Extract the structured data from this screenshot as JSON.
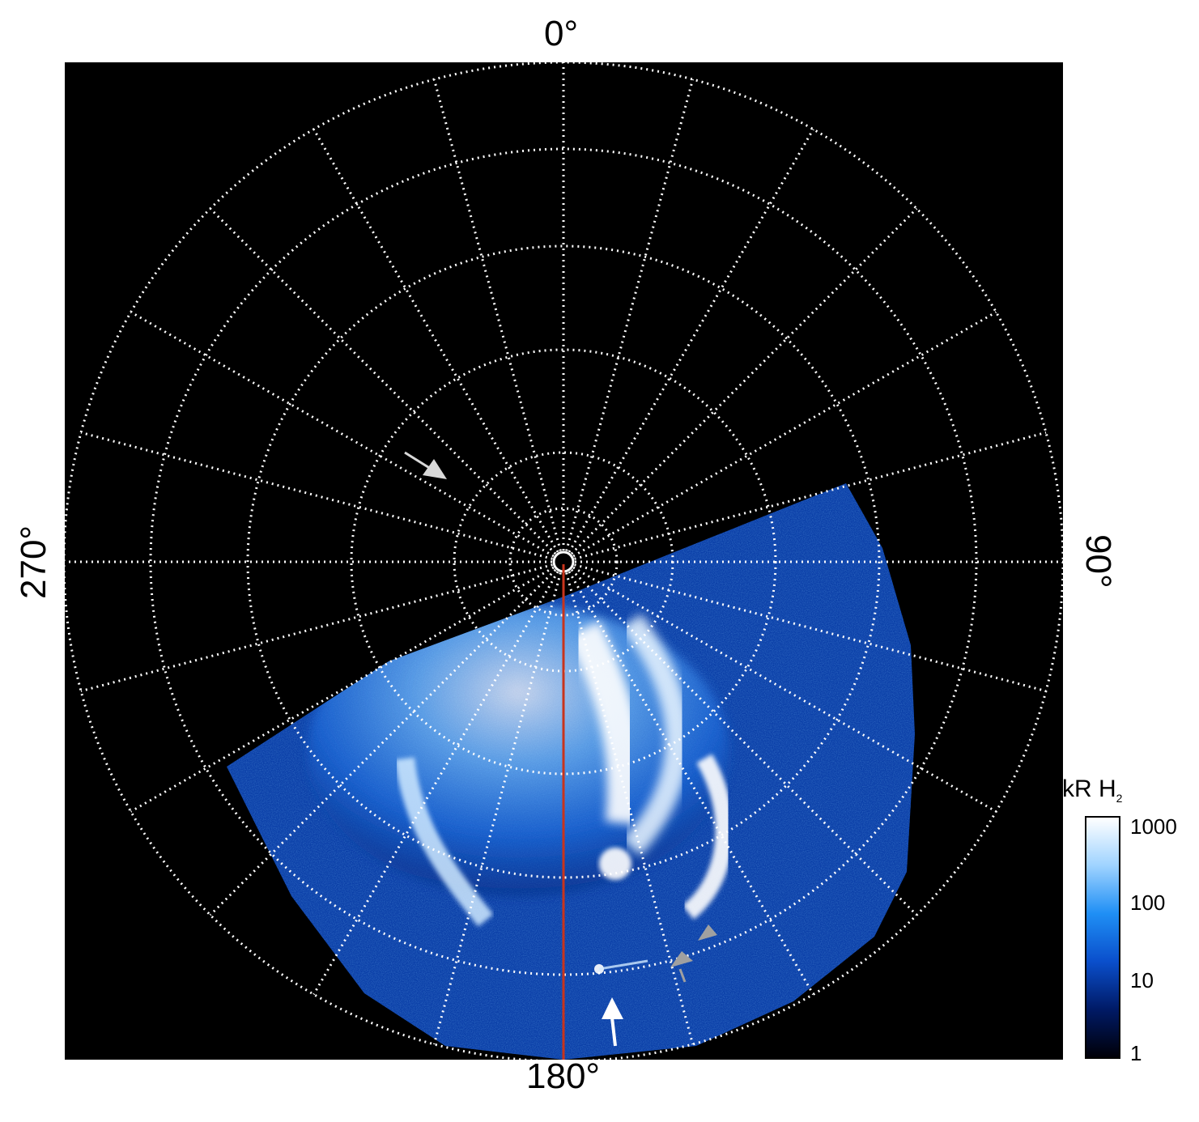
{
  "longitude_labels": {
    "top": "0°",
    "right": "90°",
    "bottom": "180°",
    "left": "270°"
  },
  "colorbar": {
    "title": "kR H",
    "title_subscript": "2",
    "ticks": [
      "1000",
      "100",
      "10",
      "1"
    ],
    "scale": "log",
    "colors": [
      "#000008",
      "#001a66",
      "#0a4fcc",
      "#1f8ff5",
      "#9fd3ff",
      "#ffffff"
    ]
  },
  "grid": {
    "color": "#ffffff",
    "style": "dotted",
    "meridian_spacing_deg": 15,
    "latitude_rings": 5
  },
  "reference_line": {
    "color": "#c8341c",
    "longitude_deg": 180
  },
  "annotations": [
    {
      "name": "arrow-upper-left",
      "color": "#d9d9d9"
    },
    {
      "name": "arrow-bottom-white",
      "color": "#ffffff"
    },
    {
      "name": "arrow-gray-lower",
      "color": "#a0a0a0"
    },
    {
      "name": "arrow-gray-upper",
      "color": "#a0a0a0"
    }
  ]
}
